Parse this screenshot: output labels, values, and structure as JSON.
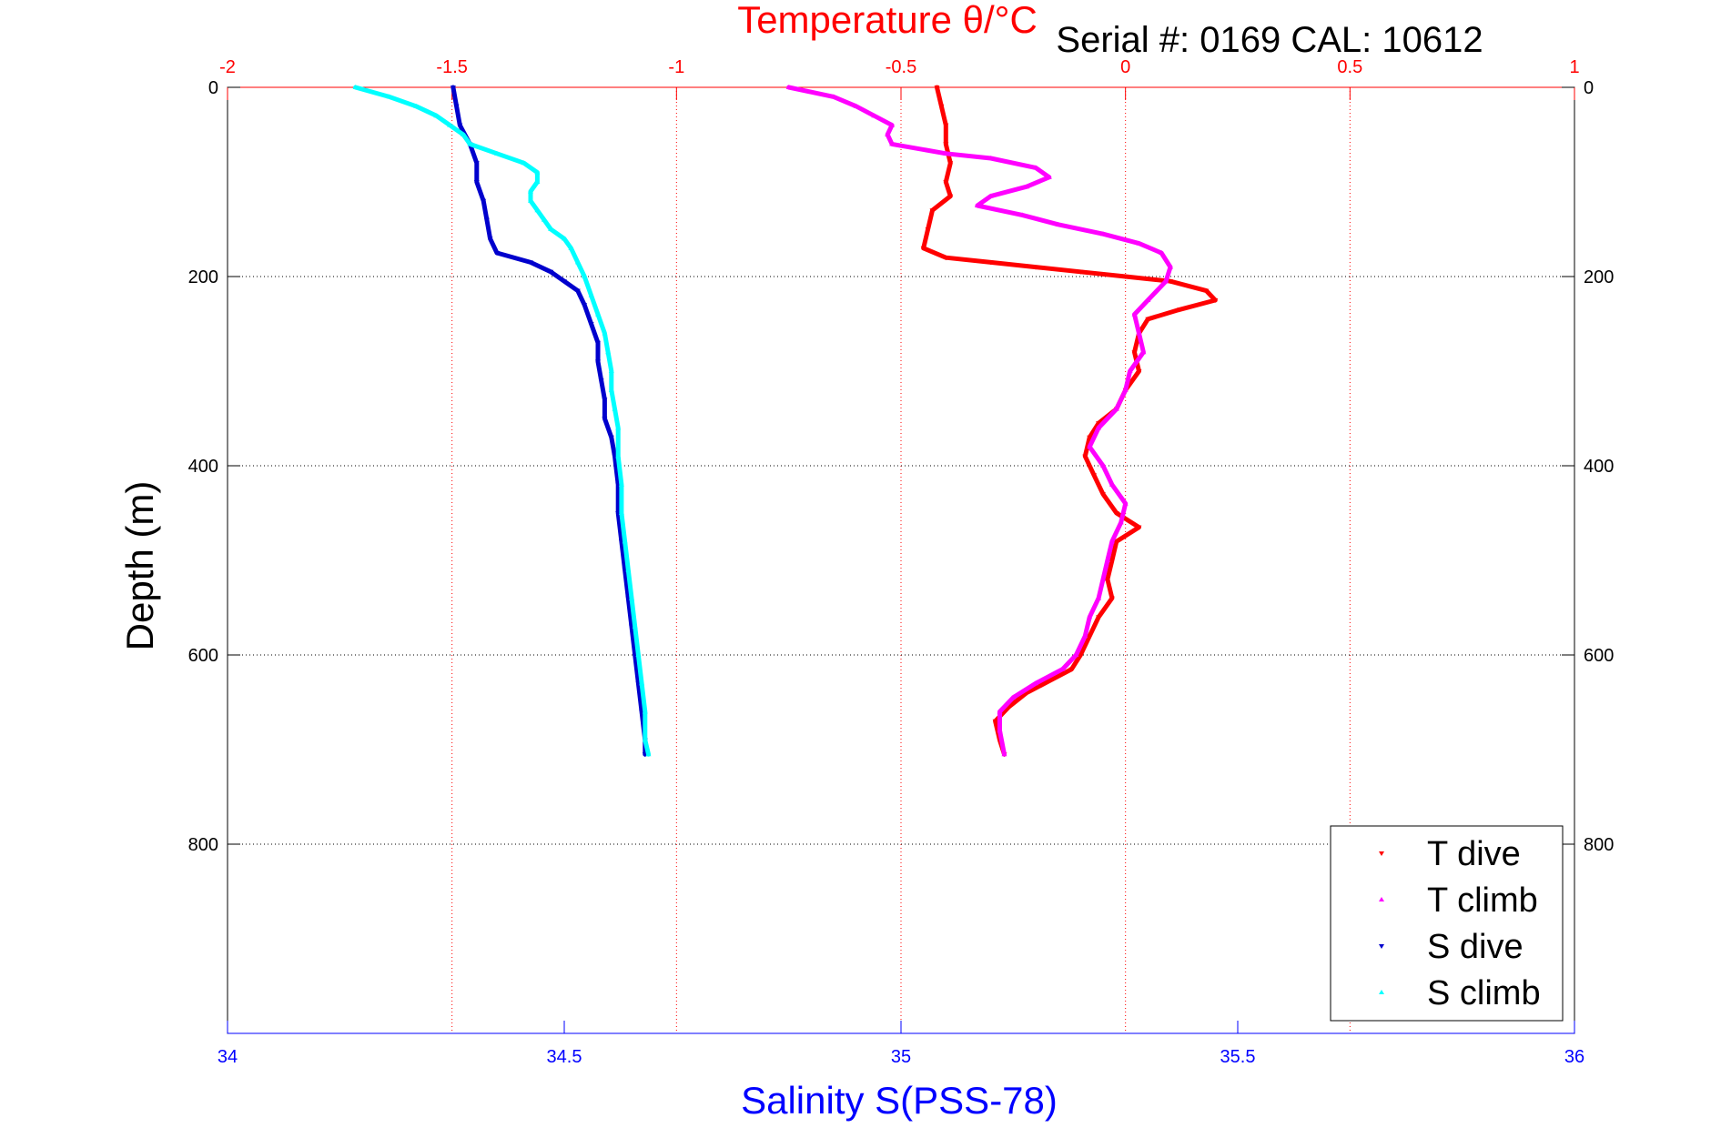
{
  "chart_data": {
    "type": "scatter",
    "title": "Serial #: 0169 CAL: 10612",
    "top_axis": {
      "label": "Temperature θ/°C",
      "range": [
        -2,
        1
      ],
      "ticks": [
        -2,
        -1.5,
        -1,
        -0.5,
        0,
        0.5,
        1
      ],
      "tick_labels": [
        "-2",
        "-1.5",
        "-1",
        "-0.5",
        "0",
        "0.5",
        "1"
      ],
      "color": "#ff0000"
    },
    "bottom_axis": {
      "label": "Salinity S(PSS-78)",
      "range": [
        34,
        36
      ],
      "ticks": [
        34,
        34.5,
        35,
        35.5,
        36
      ],
      "tick_labels": [
        "34",
        "34.5",
        "35",
        "35.5",
        "36"
      ],
      "color": "#0000ff"
    },
    "y_axis": {
      "label": "Depth (m)",
      "range": [
        0,
        1000
      ],
      "reversed": true,
      "ticks": [
        0,
        200,
        400,
        600,
        800
      ],
      "tick_labels": [
        "0",
        "200",
        "400",
        "600",
        "800"
      ]
    },
    "grid": true,
    "legend_position": "bottom-right",
    "series": [
      {
        "name": "T dive",
        "color": "#ff0000",
        "marker": "triangle-down",
        "axis": "temperature",
        "points": [
          [
            -0.42,
            0
          ],
          [
            -0.41,
            20
          ],
          [
            -0.4,
            40
          ],
          [
            -0.4,
            60
          ],
          [
            -0.39,
            80
          ],
          [
            -0.4,
            100
          ],
          [
            -0.39,
            115
          ],
          [
            -0.43,
            130
          ],
          [
            -0.44,
            150
          ],
          [
            -0.45,
            170
          ],
          [
            -0.4,
            180
          ],
          [
            -0.3,
            185
          ],
          [
            -0.2,
            190
          ],
          [
            -0.1,
            195
          ],
          [
            0.0,
            200
          ],
          [
            0.1,
            205
          ],
          [
            0.18,
            215
          ],
          [
            0.2,
            225
          ],
          [
            0.12,
            235
          ],
          [
            0.05,
            245
          ],
          [
            0.03,
            260
          ],
          [
            0.02,
            280
          ],
          [
            0.03,
            300
          ],
          [
            0.0,
            320
          ],
          [
            -0.02,
            340
          ],
          [
            -0.06,
            355
          ],
          [
            -0.08,
            370
          ],
          [
            -0.09,
            390
          ],
          [
            -0.07,
            410
          ],
          [
            -0.05,
            430
          ],
          [
            -0.02,
            450
          ],
          [
            0.03,
            465
          ],
          [
            -0.02,
            480
          ],
          [
            -0.03,
            500
          ],
          [
            -0.04,
            520
          ],
          [
            -0.03,
            540
          ],
          [
            -0.06,
            560
          ],
          [
            -0.08,
            580
          ],
          [
            -0.1,
            600
          ],
          [
            -0.12,
            615
          ],
          [
            -0.16,
            625
          ],
          [
            -0.22,
            640
          ],
          [
            -0.26,
            655
          ],
          [
            -0.29,
            670
          ],
          [
            -0.28,
            690
          ],
          [
            -0.27,
            705
          ]
        ]
      },
      {
        "name": "T climb",
        "color": "#ff00ff",
        "marker": "triangle-up",
        "axis": "temperature",
        "points": [
          [
            -0.75,
            0
          ],
          [
            -0.65,
            10
          ],
          [
            -0.6,
            20
          ],
          [
            -0.56,
            30
          ],
          [
            -0.52,
            40
          ],
          [
            -0.53,
            50
          ],
          [
            -0.52,
            60
          ],
          [
            -0.4,
            70
          ],
          [
            -0.3,
            75
          ],
          [
            -0.2,
            85
          ],
          [
            -0.17,
            95
          ],
          [
            -0.22,
            105
          ],
          [
            -0.3,
            115
          ],
          [
            -0.33,
            125
          ],
          [
            -0.23,
            135
          ],
          [
            -0.15,
            145
          ],
          [
            -0.05,
            155
          ],
          [
            0.03,
            165
          ],
          [
            0.08,
            175
          ],
          [
            0.1,
            190
          ],
          [
            0.09,
            205
          ],
          [
            0.05,
            225
          ],
          [
            0.02,
            240
          ],
          [
            0.03,
            260
          ],
          [
            0.04,
            280
          ],
          [
            0.01,
            300
          ],
          [
            0.0,
            320
          ],
          [
            -0.02,
            340
          ],
          [
            -0.06,
            360
          ],
          [
            -0.08,
            380
          ],
          [
            -0.05,
            400
          ],
          [
            -0.03,
            420
          ],
          [
            0.0,
            440
          ],
          [
            -0.01,
            460
          ],
          [
            -0.03,
            480
          ],
          [
            -0.04,
            500
          ],
          [
            -0.05,
            520
          ],
          [
            -0.06,
            540
          ],
          [
            -0.08,
            560
          ],
          [
            -0.09,
            580
          ],
          [
            -0.11,
            600
          ],
          [
            -0.14,
            615
          ],
          [
            -0.2,
            630
          ],
          [
            -0.25,
            645
          ],
          [
            -0.28,
            660
          ],
          [
            -0.28,
            680
          ],
          [
            -0.27,
            705
          ]
        ]
      },
      {
        "name": "S dive",
        "color": "#0000cd",
        "marker": "triangle-down",
        "axis": "salinity",
        "points": [
          [
            34.335,
            0
          ],
          [
            34.34,
            20
          ],
          [
            34.345,
            40
          ],
          [
            34.36,
            60
          ],
          [
            34.37,
            80
          ],
          [
            34.37,
            100
          ],
          [
            34.38,
            120
          ],
          [
            34.385,
            140
          ],
          [
            34.39,
            160
          ],
          [
            34.4,
            175
          ],
          [
            34.45,
            185
          ],
          [
            34.48,
            195
          ],
          [
            34.5,
            205
          ],
          [
            34.52,
            215
          ],
          [
            34.53,
            230
          ],
          [
            34.54,
            250
          ],
          [
            34.55,
            270
          ],
          [
            34.55,
            290
          ],
          [
            34.555,
            310
          ],
          [
            34.56,
            330
          ],
          [
            34.56,
            350
          ],
          [
            34.57,
            370
          ],
          [
            34.575,
            390
          ],
          [
            34.58,
            420
          ],
          [
            34.58,
            450
          ],
          [
            34.585,
            480
          ],
          [
            34.59,
            510
          ],
          [
            34.595,
            540
          ],
          [
            34.6,
            570
          ],
          [
            34.605,
            600
          ],
          [
            34.61,
            630
          ],
          [
            34.615,
            660
          ],
          [
            34.62,
            690
          ],
          [
            34.62,
            705
          ]
        ]
      },
      {
        "name": "S climb",
        "color": "#00ffff",
        "marker": "triangle-up",
        "axis": "salinity",
        "points": [
          [
            34.19,
            0
          ],
          [
            34.24,
            10
          ],
          [
            34.28,
            20
          ],
          [
            34.31,
            30
          ],
          [
            34.33,
            40
          ],
          [
            34.35,
            50
          ],
          [
            34.36,
            60
          ],
          [
            34.4,
            70
          ],
          [
            34.44,
            80
          ],
          [
            34.46,
            90
          ],
          [
            34.46,
            100
          ],
          [
            34.45,
            110
          ],
          [
            34.45,
            120
          ],
          [
            34.46,
            130
          ],
          [
            34.47,
            140
          ],
          [
            34.48,
            150
          ],
          [
            34.5,
            160
          ],
          [
            34.51,
            170
          ],
          [
            34.52,
            185
          ],
          [
            34.53,
            200
          ],
          [
            34.54,
            220
          ],
          [
            34.55,
            240
          ],
          [
            34.56,
            260
          ],
          [
            34.565,
            280
          ],
          [
            34.57,
            300
          ],
          [
            34.57,
            320
          ],
          [
            34.575,
            340
          ],
          [
            34.58,
            360
          ],
          [
            34.58,
            390
          ],
          [
            34.585,
            420
          ],
          [
            34.585,
            450
          ],
          [
            34.59,
            480
          ],
          [
            34.595,
            510
          ],
          [
            34.6,
            540
          ],
          [
            34.605,
            570
          ],
          [
            34.61,
            600
          ],
          [
            34.615,
            630
          ],
          [
            34.62,
            660
          ],
          [
            34.62,
            690
          ],
          [
            34.625,
            705
          ]
        ]
      }
    ]
  }
}
